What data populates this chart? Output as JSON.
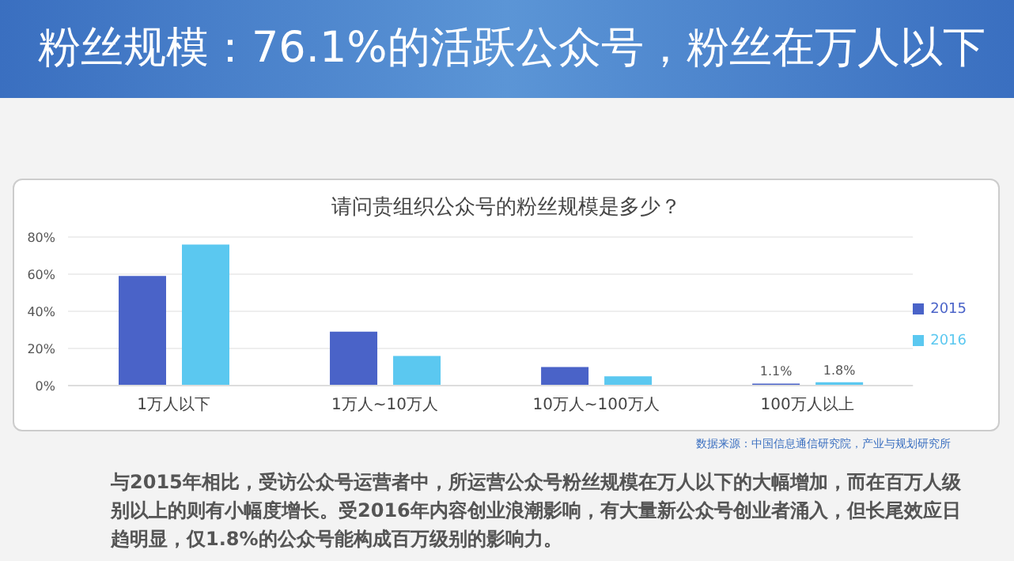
{
  "chart_data": {
    "type": "bar",
    "title": "粉丝规模：76.1%的活跃公众号，粉丝在万人以下",
    "subtitle": "请问贵组织公众号的粉丝规模是多少？",
    "categories": [
      "1万人以下",
      "1万人~10万人",
      "10万人~100万人",
      "100万人以上"
    ],
    "series": [
      {
        "name": "2015",
        "color": "#4a63c8",
        "values": [
          59,
          29,
          10,
          1.1
        ],
        "value_labels": [
          null,
          null,
          null,
          "1.1%"
        ]
      },
      {
        "name": "2016",
        "color": "#5bc8f0",
        "values": [
          76,
          16,
          5,
          1.8
        ],
        "value_labels": [
          null,
          null,
          null,
          "1.8%"
        ]
      }
    ],
    "ylim": [
      0,
      80
    ],
    "yticks": [
      {
        "value": 0,
        "label": "0%"
      },
      {
        "value": 20,
        "label": "20%"
      },
      {
        "value": 40,
        "label": "40%"
      },
      {
        "value": 60,
        "label": "60%"
      },
      {
        "value": 80,
        "label": "80%"
      }
    ],
    "grid": "y",
    "legend": "right",
    "annotations": [
      "数据来源：中国信息通信研究院，产业与规划研究所",
      "与2015年相比，受访公众号运营者中，所运营公众号粉丝规模在万人以下的大幅增加，而在百万人级别以上的则有小幅度增长。受2016年内容创业浪潮影响，有大量新公众号创业者涌入，但长尾效应日趋明显，仅1.8%的公众号能构成百万级别的影响力。"
    ]
  }
}
